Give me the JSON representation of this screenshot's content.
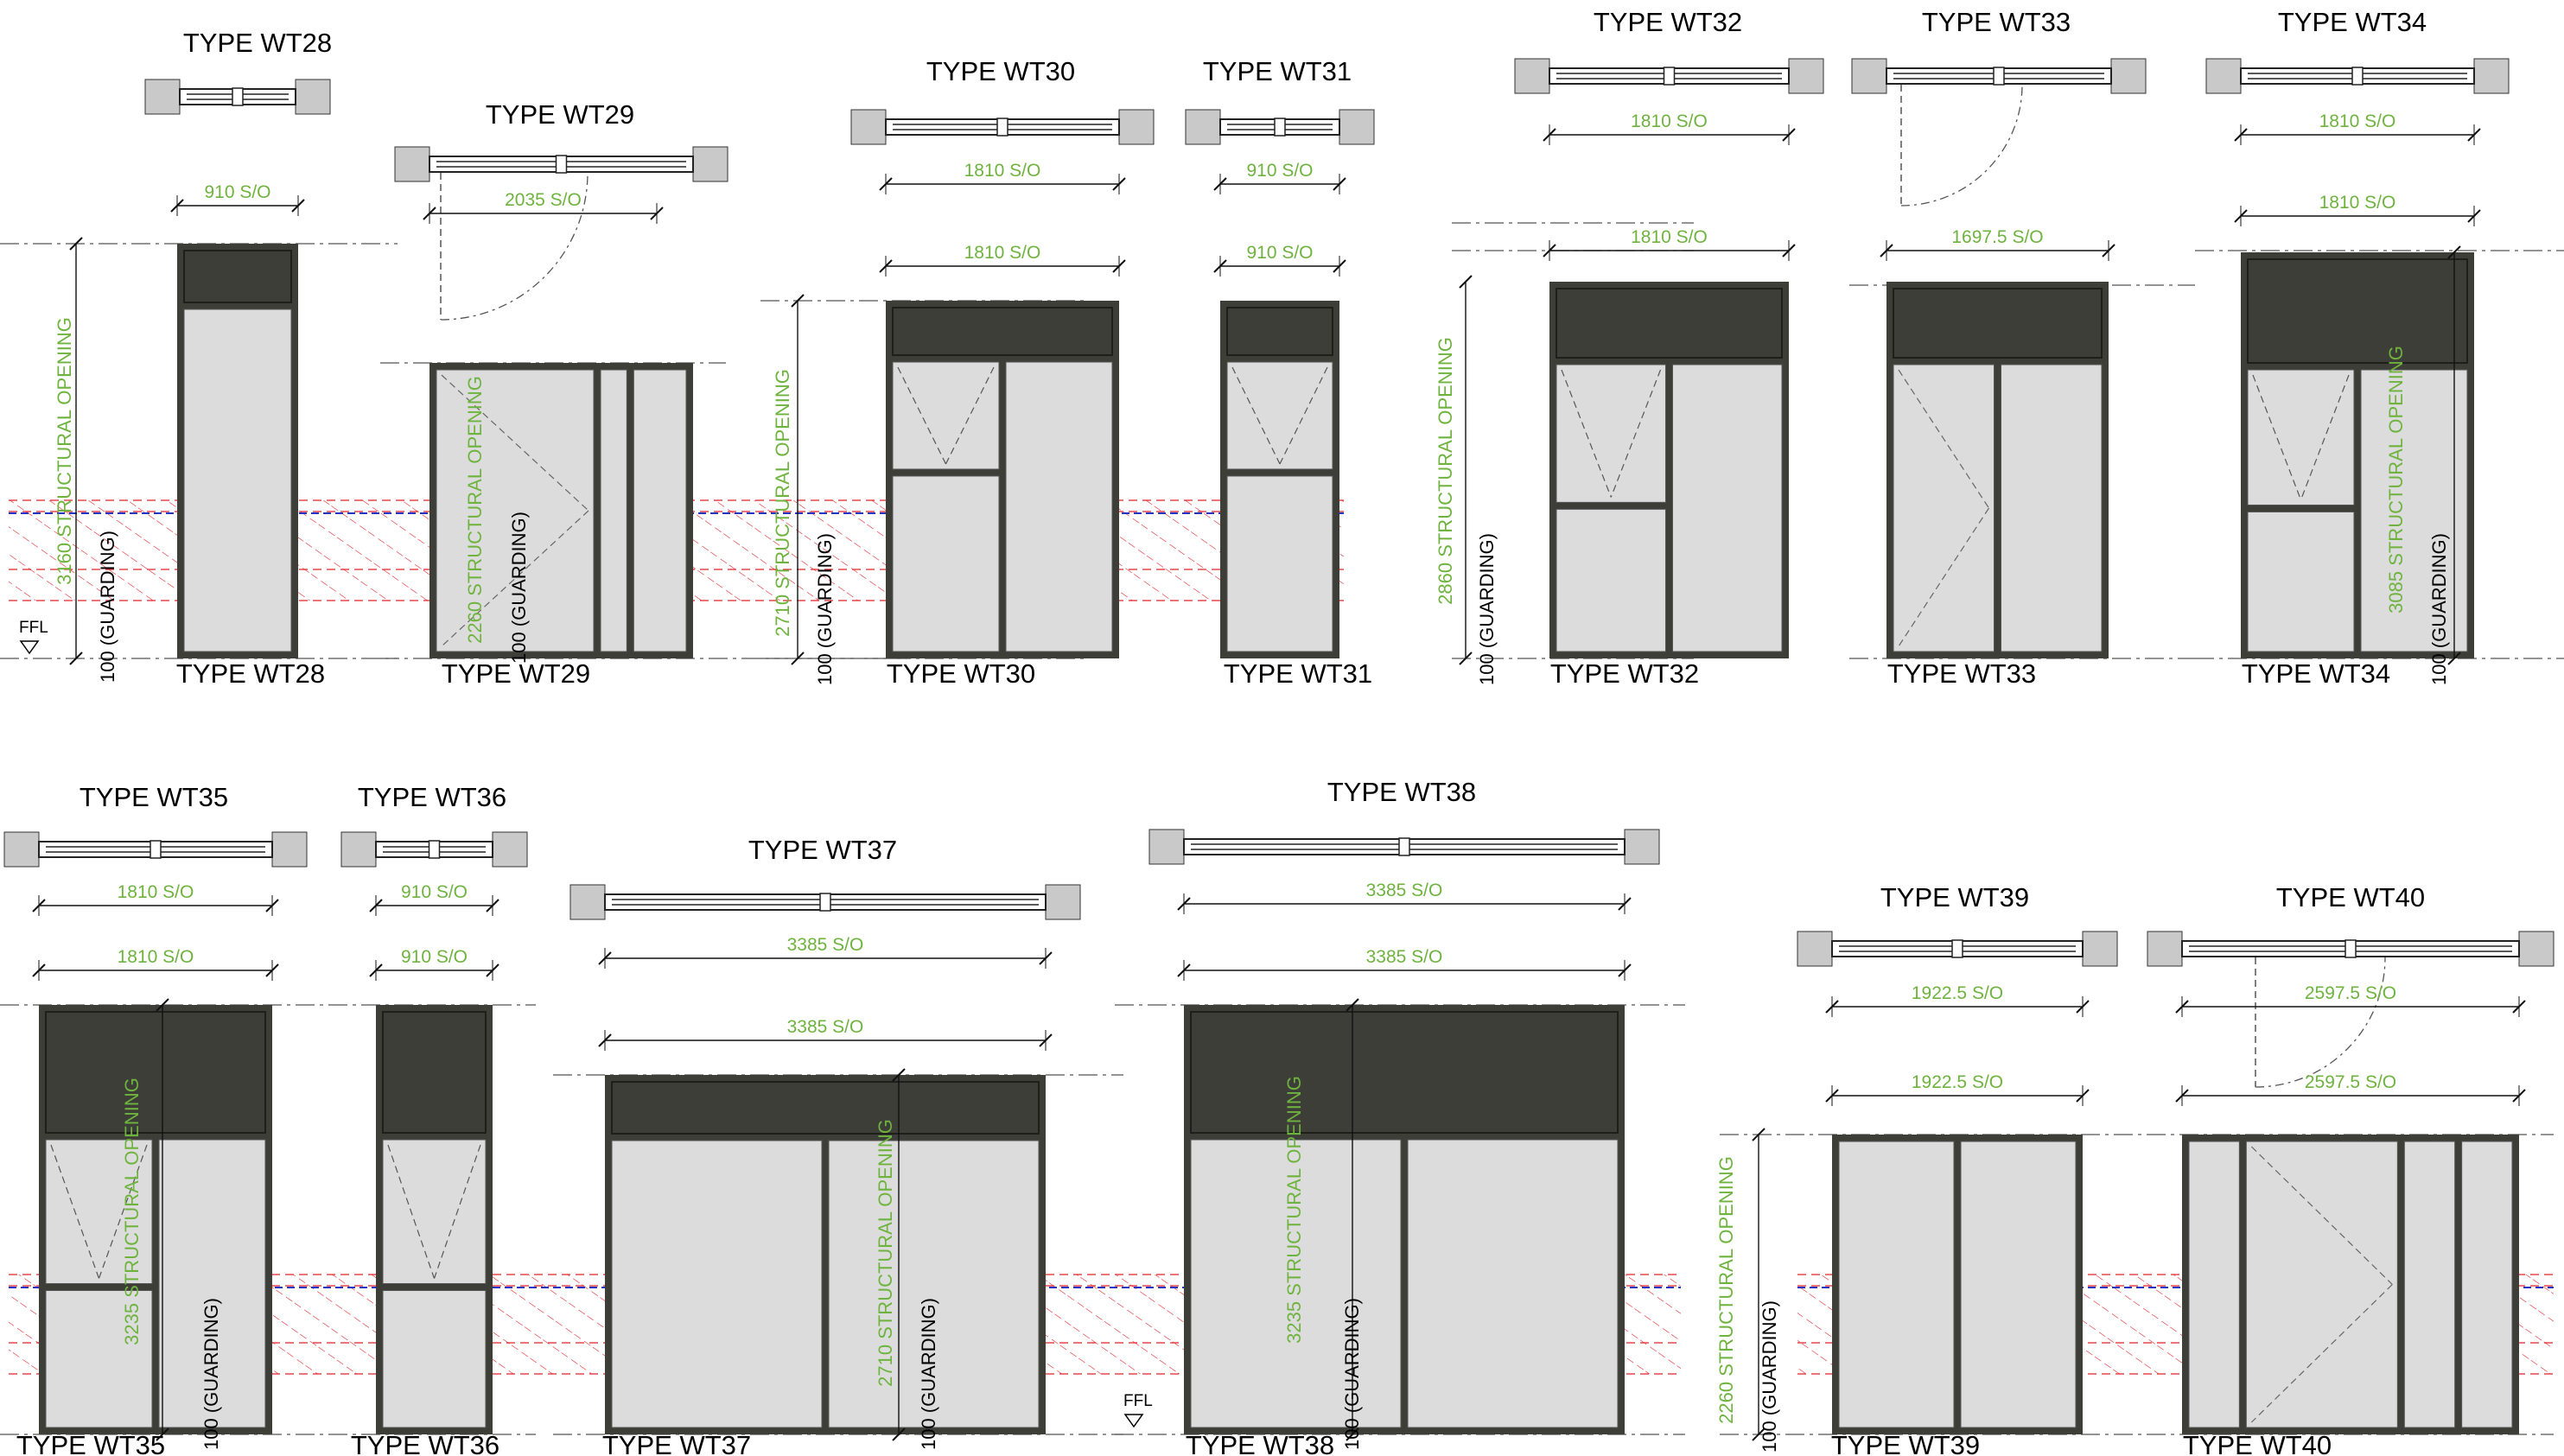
{
  "colors": {
    "frame": "#3d3e38",
    "glass": "#dcdcdc",
    "wall": "#c9c9c9",
    "dim_text": "#6fb33f",
    "hatch": "#e0232a",
    "guard_line": "#2333c4"
  },
  "labels": {
    "ffl": "FFL"
  },
  "types": [
    {
      "id": "wt28",
      "plan_title": "TYPE WT28",
      "elev_title": "TYPE WT28",
      "plan_dim": "",
      "elev_dim": "910 S/O",
      "opening": "3160 STRUCTURAL OPENING",
      "guarding": "100 (GUARDING)"
    },
    {
      "id": "wt29",
      "plan_title": "TYPE WT29",
      "elev_title": "TYPE WT29",
      "plan_dim": "2035 S/O",
      "elev_dim": "",
      "opening": "2260 STRUCTURAL OPENING",
      "guarding": "100 (GUARDING)"
    },
    {
      "id": "wt30",
      "plan_title": "TYPE WT30",
      "elev_title": "TYPE WT30",
      "plan_dim": "1810 S/O",
      "elev_dim": "1810 S/O",
      "opening": "2710 STRUCTURAL OPENING",
      "guarding": "100 (GUARDING)"
    },
    {
      "id": "wt31",
      "plan_title": "TYPE WT31",
      "elev_title": "TYPE WT31",
      "plan_dim": "910 S/O",
      "elev_dim": "910 S/O",
      "opening": "",
      "guarding": ""
    },
    {
      "id": "wt32",
      "plan_title": "TYPE WT32",
      "elev_title": "TYPE WT32",
      "plan_dim": "1810 S/O",
      "elev_dim": "1810 S/O",
      "opening": "2860 STRUCTURAL OPENING",
      "guarding": "100 (GUARDING)"
    },
    {
      "id": "wt33",
      "plan_title": "TYPE WT33",
      "elev_title": "TYPE WT33",
      "plan_dim": "",
      "elev_dim": "1697.5 S/O",
      "opening": "",
      "guarding": ""
    },
    {
      "id": "wt34",
      "plan_title": "TYPE WT34",
      "elev_title": "TYPE WT34",
      "plan_dim": "1810 S/O",
      "elev_dim": "1810 S/O",
      "opening": "3085 STRUCTURAL OPENING",
      "guarding": "100 (GUARDING)"
    },
    {
      "id": "wt35",
      "plan_title": "TYPE WT35",
      "elev_title": "TYPE WT35",
      "plan_dim": "1810 S/O",
      "elev_dim": "1810 S/O",
      "opening": "3235 STRUCTURAL OPENING",
      "guarding": "100 (GUARDING)"
    },
    {
      "id": "wt36",
      "plan_title": "TYPE WT36",
      "elev_title": "TYPE WT36",
      "plan_dim": "910 S/O",
      "elev_dim": "910 S/O",
      "opening": "",
      "guarding": ""
    },
    {
      "id": "wt37",
      "plan_title": "TYPE WT37",
      "elev_title": "TYPE WT37",
      "plan_dim": "3385 S/O",
      "elev_dim": "3385 S/O",
      "opening": "2710 STRUCTURAL OPENING",
      "guarding": "100 (GUARDING)"
    },
    {
      "id": "wt38",
      "plan_title": "TYPE WT38",
      "elev_title": "TYPE WT38",
      "plan_dim": "3385 S/O",
      "elev_dim": "3385 S/O",
      "opening": "3235 STRUCTURAL OPENING",
      "guarding": "100 (GUARDING)"
    },
    {
      "id": "wt39",
      "plan_title": "TYPE WT39",
      "elev_title": "TYPE WT39",
      "plan_dim": "1922.5 S/O",
      "elev_dim": "1922.5 S/O",
      "opening": "2260 STRUCTURAL OPENING",
      "guarding": "100 (GUARDING)"
    },
    {
      "id": "wt40",
      "plan_title": "TYPE WT40",
      "elev_title": "TYPE WT40",
      "plan_dim": "2597.5 S/O",
      "elev_dim": "2597.5 S/O",
      "opening": "",
      "guarding": ""
    }
  ]
}
